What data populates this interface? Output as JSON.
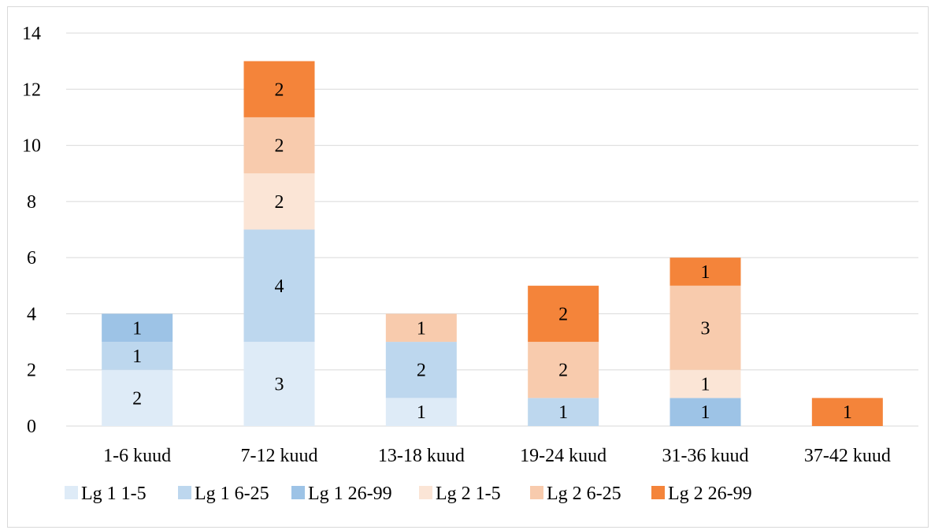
{
  "chart_data": {
    "type": "bar",
    "stacked": true,
    "title": "",
    "xlabel": "",
    "ylabel": "",
    "ylim": [
      0,
      14
    ],
    "yticks": [
      0,
      2,
      4,
      6,
      8,
      10,
      12,
      14
    ],
    "grid": true,
    "legend_position": "bottom",
    "categories": [
      "1-6 kuud",
      "7-12 kuud",
      "13-18 kuud",
      "19-24 kuud",
      "31-36 kuud",
      "37-42 kuud"
    ],
    "series": [
      {
        "name": "Lg 1 1-5",
        "color": "#deebf7",
        "values": [
          2,
          3,
          1,
          0,
          0,
          0
        ]
      },
      {
        "name": "Lg 1 6-25",
        "color": "#bdd7ee",
        "values": [
          1,
          4,
          2,
          1,
          0,
          0
        ]
      },
      {
        "name": "Lg 1 26-99",
        "color": "#9dc3e6",
        "values": [
          1,
          0,
          0,
          0,
          1,
          0
        ]
      },
      {
        "name": "Lg 2 1-5",
        "color": "#fbe5d6",
        "values": [
          0,
          2,
          0,
          0,
          1,
          0
        ]
      },
      {
        "name": "Lg 2 6-25",
        "color": "#f8cbad",
        "values": [
          0,
          2,
          1,
          2,
          3,
          0
        ]
      },
      {
        "name": "Lg 2 26-99",
        "color": "#f4843a",
        "values": [
          0,
          2,
          0,
          2,
          1,
          1
        ]
      }
    ]
  }
}
